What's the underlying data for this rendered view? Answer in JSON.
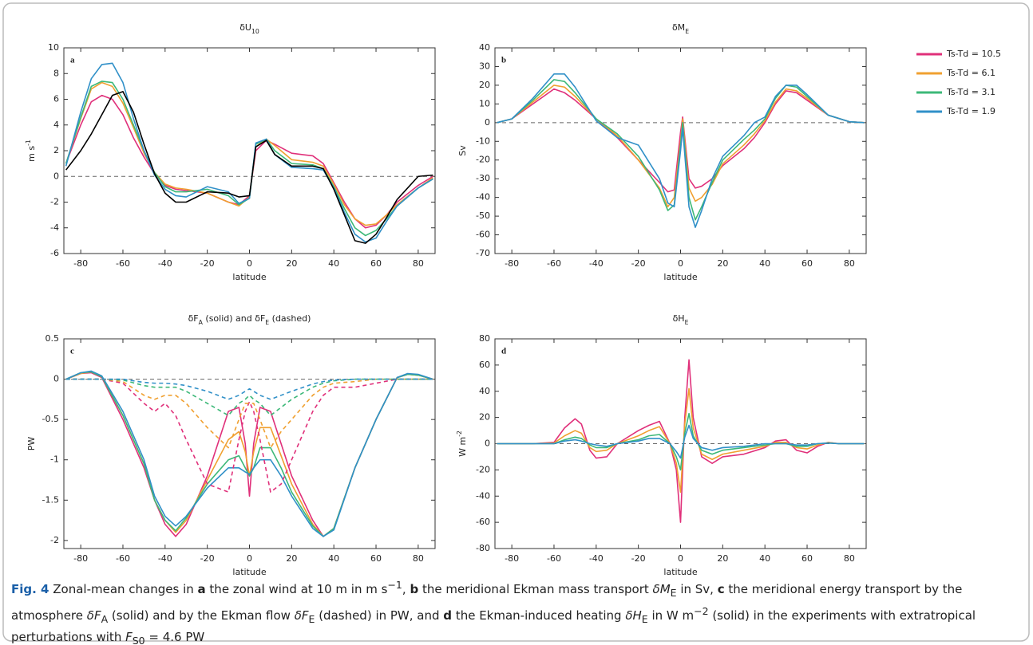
{
  "chart_data": [
    {
      "type": "line",
      "panel_label": "a",
      "title": [
        "δU",
        "10"
      ],
      "xlabel": "latitude",
      "ylabel": [
        "m s",
        "-1"
      ],
      "xlim": [
        -88,
        88
      ],
      "xticks": [
        -80,
        -60,
        -40,
        -20,
        0,
        20,
        40,
        60,
        80
      ],
      "ylim": [
        -6,
        10
      ],
      "yticks": [
        -6,
        -4,
        -2,
        0,
        2,
        4,
        6,
        8,
        10
      ],
      "reference_line": 0,
      "x": [
        -87,
        -80,
        -75,
        -70,
        -65,
        -60,
        -55,
        -50,
        -45,
        -40,
        -35,
        -30,
        -20,
        -10,
        -5,
        0,
        3,
        8,
        12,
        20,
        30,
        35,
        40,
        45,
        50,
        55,
        60,
        65,
        70,
        80,
        87
      ],
      "series": [
        {
          "name": "Ts-Td = 10.5",
          "color": "#e0307a",
          "values": [
            1,
            4,
            5.8,
            6.3,
            6,
            4.8,
            3,
            1.5,
            0.2,
            -0.7,
            -1,
            -1.1,
            -1.3,
            -2,
            -2.2,
            -1.5,
            2,
            2.8,
            2.5,
            1.8,
            1.6,
            1,
            -0.5,
            -2,
            -3.3,
            -4,
            -3.8,
            -3,
            -2,
            -0.7,
            0
          ]
        },
        {
          "name": "Ts-Td = 6.1",
          "color": "#f0a030",
          "values": [
            1,
            4.5,
            6.8,
            7.3,
            7,
            5.7,
            3.8,
            1.8,
            0.3,
            -0.6,
            -0.9,
            -1,
            -1.3,
            -2,
            -2.3,
            -1.6,
            2.3,
            2.9,
            2.4,
            1.3,
            1.1,
            0.8,
            -0.6,
            -2.2,
            -3.3,
            -3.8,
            -3.7,
            -3,
            -2.2,
            -0.9,
            -0.1
          ]
        },
        {
          "name": "Ts-Td = 3.1",
          "color": "#3cb878",
          "values": [
            1,
            4.6,
            7,
            7.4,
            7.3,
            6,
            4,
            2,
            0.3,
            -0.8,
            -1.2,
            -1.2,
            -1,
            -1.5,
            -2.2,
            -1.7,
            2.5,
            2.9,
            2,
            1,
            0.9,
            0.6,
            -0.8,
            -2.5,
            -4,
            -4.6,
            -4.2,
            -3.3,
            -2.3,
            -0.9,
            -0.2
          ]
        },
        {
          "name": "Ts-Td = 1.9",
          "color": "#3090c8",
          "values": [
            0.8,
            5,
            7.6,
            8.7,
            8.8,
            7.3,
            4.5,
            2,
            0.1,
            -1,
            -1.5,
            -1.6,
            -0.8,
            -1.2,
            -2.1,
            -1.7,
            2.6,
            2.9,
            1.7,
            0.7,
            0.6,
            0.5,
            -0.9,
            -2.8,
            -4.5,
            -5.1,
            -4.8,
            -3.5,
            -2.3,
            -0.9,
            -0.2
          ]
        },
        {
          "color": "#000000",
          "values": [
            0.5,
            2,
            3.3,
            4.8,
            6.3,
            6.6,
            5,
            2.5,
            0.2,
            -1.3,
            -2,
            -2,
            -1.2,
            -1.3,
            -1.6,
            -1.5,
            2.3,
            2.8,
            1.7,
            0.8,
            0.8,
            0.6,
            -1,
            -3,
            -5,
            -5.2,
            -4.5,
            -3.2,
            -1.8,
            0,
            0.1
          ]
        }
      ]
    },
    {
      "type": "line",
      "panel_label": "b",
      "title": [
        "δM",
        "E"
      ],
      "xlabel": "latitude",
      "ylabel": [
        "Sv"
      ],
      "xlim": [
        -88,
        88
      ],
      "xticks": [
        -80,
        -60,
        -40,
        -20,
        0,
        20,
        40,
        60,
        80
      ],
      "ylim": [
        -70,
        40
      ],
      "yticks": [
        -70,
        -60,
        -50,
        -40,
        -30,
        -20,
        -10,
        0,
        10,
        20,
        30,
        40
      ],
      "reference_line": 0,
      "x": [
        -87,
        -80,
        -70,
        -60,
        -55,
        -50,
        -40,
        -30,
        -20,
        -10,
        -6,
        -3,
        0,
        1,
        4,
        7,
        10,
        15,
        20,
        30,
        35,
        40,
        45,
        50,
        55,
        60,
        70,
        80,
        87
      ],
      "series": [
        {
          "color": "#e0307a",
          "values": [
            0,
            2,
            10,
            18,
            16,
            12,
            2,
            -8,
            -20,
            -32,
            -37,
            -36,
            -5,
            3,
            -30,
            -35,
            -34,
            -30,
            -23,
            -14,
            -8,
            0,
            10,
            17,
            16,
            12,
            4,
            0.5,
            0
          ]
        },
        {
          "color": "#f0a030",
          "values": [
            0,
            2,
            11,
            20,
            19,
            14,
            2,
            -7,
            -20,
            -35,
            -45,
            -40,
            -10,
            2,
            -35,
            -42,
            -40,
            -33,
            -22,
            -12,
            -6,
            1,
            11,
            18,
            17,
            13,
            4,
            0.5,
            0
          ]
        },
        {
          "color": "#3cb878",
          "values": [
            0,
            2,
            12,
            23,
            22,
            16,
            2,
            -6,
            -18,
            -36,
            -47,
            -44,
            -12,
            0,
            -40,
            -52,
            -45,
            -32,
            -20,
            -9,
            -4,
            2,
            13,
            20,
            19,
            14,
            4,
            0.5,
            0
          ]
        },
        {
          "color": "#3090c8",
          "values": [
            0,
            2,
            13,
            26,
            26,
            19,
            1,
            -8,
            -12,
            -30,
            -43,
            -45,
            -15,
            -3,
            -45,
            -56,
            -47,
            -30,
            -18,
            -7,
            0,
            3,
            14,
            20,
            20,
            15,
            4,
            0.5,
            0
          ]
        }
      ]
    },
    {
      "type": "line",
      "panel_label": "c",
      "title": [
        "δF",
        "A",
        " (solid) and δF",
        "E",
        " (dashed)"
      ],
      "xlabel": "latitude",
      "ylabel": [
        "PW"
      ],
      "xlim": [
        -88,
        88
      ],
      "xticks": [
        -80,
        -60,
        -40,
        -20,
        0,
        20,
        40,
        60,
        80
      ],
      "ylim": [
        -2.1,
        0.5
      ],
      "yticks": [
        -2,
        -1.5,
        -1,
        -0.5,
        0,
        0.5
      ],
      "reference_line": 0,
      "x": [
        -87,
        -80,
        -75,
        -70,
        -60,
        -50,
        -45,
        -40,
        -35,
        -30,
        -20,
        -10,
        -5,
        -2,
        0,
        2,
        5,
        10,
        15,
        20,
        30,
        35,
        40,
        50,
        60,
        70,
        75,
        80,
        87
      ],
      "series": [
        {
          "color": "#e0307a",
          "values": [
            0,
            0.07,
            0.08,
            0.02,
            -0.5,
            -1.1,
            -1.5,
            -1.8,
            -1.95,
            -1.8,
            -1.2,
            -0.4,
            -0.35,
            -0.8,
            -1.45,
            -0.8,
            -0.35,
            -0.4,
            -0.8,
            -1.2,
            -1.75,
            -1.95,
            -1.85,
            -1.1,
            -0.5,
            0.02,
            0.06,
            0.05,
            0
          ]
        },
        {
          "color": "#f0a030",
          "values": [
            0,
            0.07,
            0.09,
            0.03,
            -0.45,
            -1.05,
            -1.5,
            -1.75,
            -1.9,
            -1.75,
            -1.25,
            -0.75,
            -0.65,
            -0.9,
            -1.2,
            -0.9,
            -0.6,
            -0.6,
            -0.95,
            -1.3,
            -1.8,
            -1.95,
            -1.85,
            -1.1,
            -0.5,
            0.02,
            0.06,
            0.05,
            0
          ]
        },
        {
          "color": "#3cb878",
          "values": [
            0,
            0.08,
            0.09,
            0.03,
            -0.45,
            -1.05,
            -1.5,
            -1.75,
            -1.88,
            -1.72,
            -1.3,
            -1,
            -0.95,
            -1.1,
            -1.2,
            -1.1,
            -0.85,
            -0.85,
            -1.1,
            -1.4,
            -1.82,
            -1.95,
            -1.85,
            -1.1,
            -0.5,
            0.02,
            0.06,
            0.05,
            0
          ]
        },
        {
          "color": "#3090c8",
          "values": [
            0,
            0.08,
            0.1,
            0.04,
            -0.4,
            -1,
            -1.45,
            -1.7,
            -1.82,
            -1.7,
            -1.35,
            -1.1,
            -1.1,
            -1.15,
            -1.18,
            -1.1,
            -1,
            -1,
            -1.2,
            -1.45,
            -1.85,
            -1.95,
            -1.87,
            -1.1,
            -0.5,
            0.02,
            0.07,
            0.06,
            0
          ]
        },
        {
          "color": "#e0307a",
          "dash": true,
          "values": [
            0,
            0,
            0,
            0,
            -0.05,
            -0.3,
            -0.4,
            -0.3,
            -0.45,
            -0.75,
            -1.3,
            -1.4,
            -0.75,
            -0.4,
            -0.28,
            -0.4,
            -0.75,
            -1.4,
            -1.3,
            -1.0,
            -0.4,
            -0.2,
            -0.1,
            -0.1,
            -0.05,
            0,
            0,
            0,
            0
          ]
        },
        {
          "color": "#f0a030",
          "dash": true,
          "values": [
            0,
            0,
            0,
            0,
            -0.03,
            -0.2,
            -0.25,
            -0.2,
            -0.2,
            -0.3,
            -0.6,
            -0.85,
            -0.5,
            -0.3,
            -0.3,
            -0.3,
            -0.5,
            -0.85,
            -0.65,
            -0.5,
            -0.2,
            -0.1,
            -0.05,
            -0.03,
            0,
            0,
            0,
            0,
            0
          ]
        },
        {
          "color": "#3cb878",
          "dash": true,
          "values": [
            0,
            0,
            0,
            0,
            -0.01,
            -0.08,
            -0.1,
            -0.1,
            -0.1,
            -0.15,
            -0.3,
            -0.45,
            -0.3,
            -0.25,
            -0.2,
            -0.25,
            -0.3,
            -0.45,
            -0.35,
            -0.25,
            -0.1,
            -0.05,
            -0.02,
            0,
            0,
            0,
            0,
            0,
            0
          ]
        },
        {
          "color": "#3090c8",
          "dash": true,
          "values": [
            0,
            0,
            0,
            0,
            0,
            -0.04,
            -0.05,
            -0.05,
            -0.06,
            -0.08,
            -0.15,
            -0.25,
            -0.2,
            -0.15,
            -0.12,
            -0.15,
            -0.2,
            -0.25,
            -0.2,
            -0.15,
            -0.06,
            -0.03,
            -0.01,
            0,
            0,
            0,
            0,
            0,
            0
          ]
        }
      ]
    },
    {
      "type": "line",
      "panel_label": "d",
      "title": [
        "δH",
        "E"
      ],
      "xlabel": "latitude",
      "ylabel": [
        "W m",
        "-2"
      ],
      "xlim": [
        -88,
        88
      ],
      "xticks": [
        -80,
        -60,
        -40,
        -20,
        0,
        20,
        40,
        60,
        80
      ],
      "ylim": [
        -80,
        80
      ],
      "yticks": [
        -80,
        -60,
        -40,
        -20,
        0,
        20,
        40,
        60,
        80
      ],
      "reference_line": 0,
      "x": [
        -87,
        -70,
        -60,
        -55,
        -50,
        -47,
        -43,
        -40,
        -35,
        -30,
        -20,
        -15,
        -10,
        -5,
        -2,
        0,
        2,
        4,
        6,
        10,
        15,
        20,
        30,
        40,
        45,
        50,
        55,
        60,
        65,
        70,
        75,
        87
      ],
      "series": [
        {
          "color": "#e0307a",
          "values": [
            0,
            0,
            1,
            12,
            19,
            15,
            -5,
            -11,
            -10,
            0,
            10,
            14,
            17,
            0,
            -20,
            -60,
            20,
            64,
            20,
            -10,
            -15,
            -10,
            -8,
            -3,
            2,
            3,
            -5,
            -7,
            -2,
            1,
            0,
            0
          ]
        },
        {
          "color": "#f0a030",
          "values": [
            0,
            0,
            0.5,
            6,
            10,
            8,
            -3,
            -6,
            -5,
            0,
            6,
            10,
            13,
            0,
            -15,
            -37,
            15,
            42,
            12,
            -8,
            -12,
            -8,
            -5,
            -2,
            1,
            1,
            -3,
            -4,
            -1,
            1,
            0,
            0
          ]
        },
        {
          "color": "#3cb878",
          "values": [
            0,
            0,
            0,
            3,
            5,
            4,
            -1,
            -3,
            -3,
            0,
            3,
            6,
            7,
            0,
            -10,
            -20,
            8,
            23,
            6,
            -5,
            -8,
            -5,
            -3,
            -1,
            0,
            0,
            -2,
            -2,
            0,
            0.5,
            0,
            0
          ]
        },
        {
          "color": "#3090c8",
          "values": [
            0,
            0,
            0,
            2,
            3,
            2,
            0,
            -1,
            -2,
            0,
            2,
            4,
            4,
            0,
            -6,
            -11,
            5,
            14,
            4,
            -3,
            -5,
            -3,
            -2,
            0,
            0,
            0,
            -1,
            -1,
            0,
            0.5,
            0,
            0
          ]
        }
      ]
    }
  ],
  "caption": {
    "segments": [
      "Fig. 4",
      "  Zonal-mean changes in ",
      "a",
      " the zonal wind at 10 m in m s",
      "−1",
      ", ",
      "b",
      " the meridional Ekman mass transport ",
      "δM",
      "E",
      " in Sv, ",
      "c",
      " the meridional energy transport by the atmosphere ",
      "δF",
      "A",
      " (solid) and by the Ekman flow ",
      "δF",
      "E",
      " (dashed) in PW, and ",
      "d",
      " the Ekman-induced heating ",
      "δH",
      "E",
      " in W m",
      "−2",
      " (solid) in the experiments with extratropical perturbations with ",
      "F",
      "S0",
      " = 4.6 PW"
    ]
  }
}
